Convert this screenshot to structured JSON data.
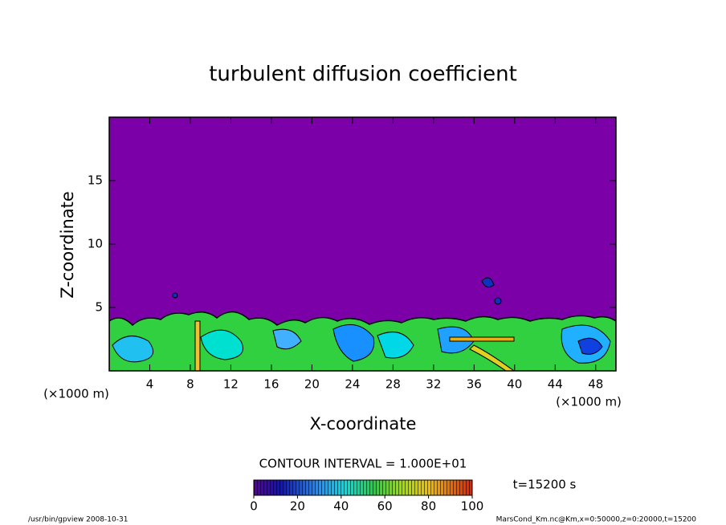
{
  "chart_data": {
    "type": "contour",
    "title": "turbulent diffusion coefficient",
    "xlabel": "X-coordinate",
    "ylabel": "Z-coordinate",
    "x_unit": "(×1000 m)",
    "xlim": [
      0,
      50
    ],
    "xticks": [
      4,
      8,
      12,
      16,
      20,
      24,
      28,
      32,
      36,
      40,
      44,
      48
    ],
    "ylim": [
      0,
      20
    ],
    "yticks": [
      5,
      10,
      15
    ],
    "contour_interval": "CONTOUR INTERVAL = 1.000E+01",
    "time_label": "t=15200 s",
    "colorbar": {
      "lim": [
        0,
        100
      ],
      "ticks": [
        0,
        20,
        40,
        60,
        80,
        100
      ]
    },
    "footer_left": "/usr/bin/gpview  2008-10-31",
    "footer_right": "MarsCond_Km.nc@Km,x=0:50000,z=0:20000,t=15200"
  }
}
